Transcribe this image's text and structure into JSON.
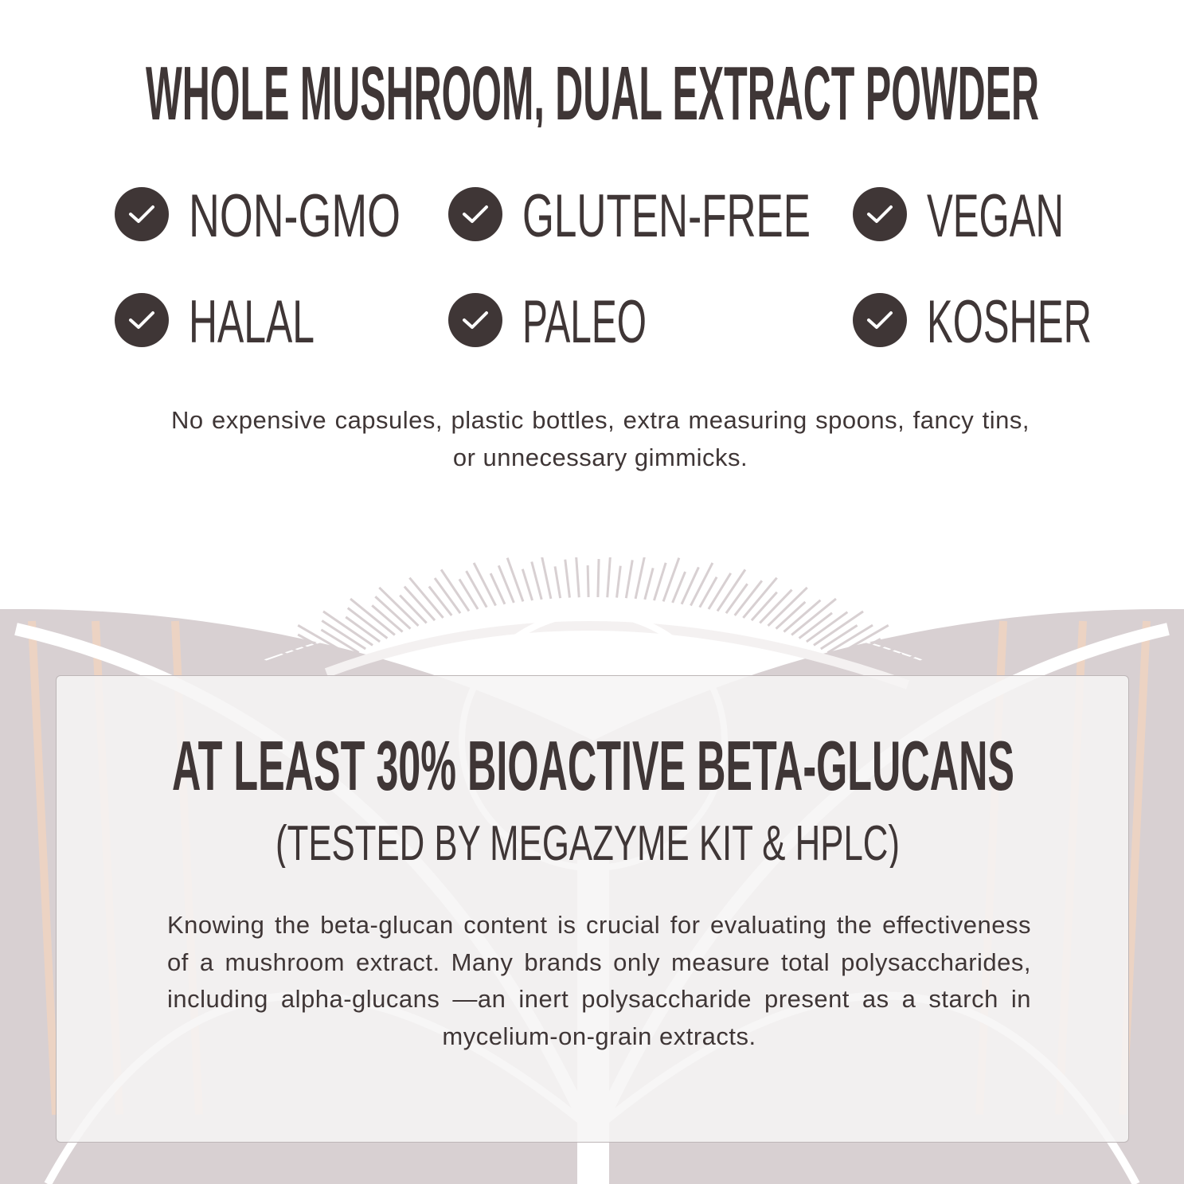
{
  "header": {
    "title": "WHOLE MUSHROOM, DUAL EXTRACT POWDER"
  },
  "badges": [
    {
      "label": "NON-GMO",
      "icon": "check-circle-icon"
    },
    {
      "label": "GLUTEN-FREE",
      "icon": "check-circle-icon"
    },
    {
      "label": "VEGAN",
      "icon": "check-circle-icon"
    },
    {
      "label": "HALAL",
      "icon": "check-circle-icon"
    },
    {
      "label": "PALEO",
      "icon": "check-circle-icon"
    },
    {
      "label": "KOSHER",
      "icon": "check-circle-icon"
    }
  ],
  "intro": "No expensive capsules, plastic bottles, extra measuring spoons, fancy tins, or unnecessary gimmicks.",
  "feature": {
    "heading": "AT LEAST 30% BIOACTIVE BETA-GLUCANS",
    "subheading": "(TESTED BY MEGAZYME KIT & HPLC)",
    "body": "Knowing the beta-glucan content is crucial for evaluating the effectiveness of a mushroom extract. Many brands only measure total polysaccharides, including alpha-glucans —an inert polysaccharide present as a starch in mycelium-on-grain extracts."
  },
  "colors": {
    "text": "#3f3636",
    "background_art": "#d8d0d2",
    "accent_stripe": "#ecd3c3"
  }
}
